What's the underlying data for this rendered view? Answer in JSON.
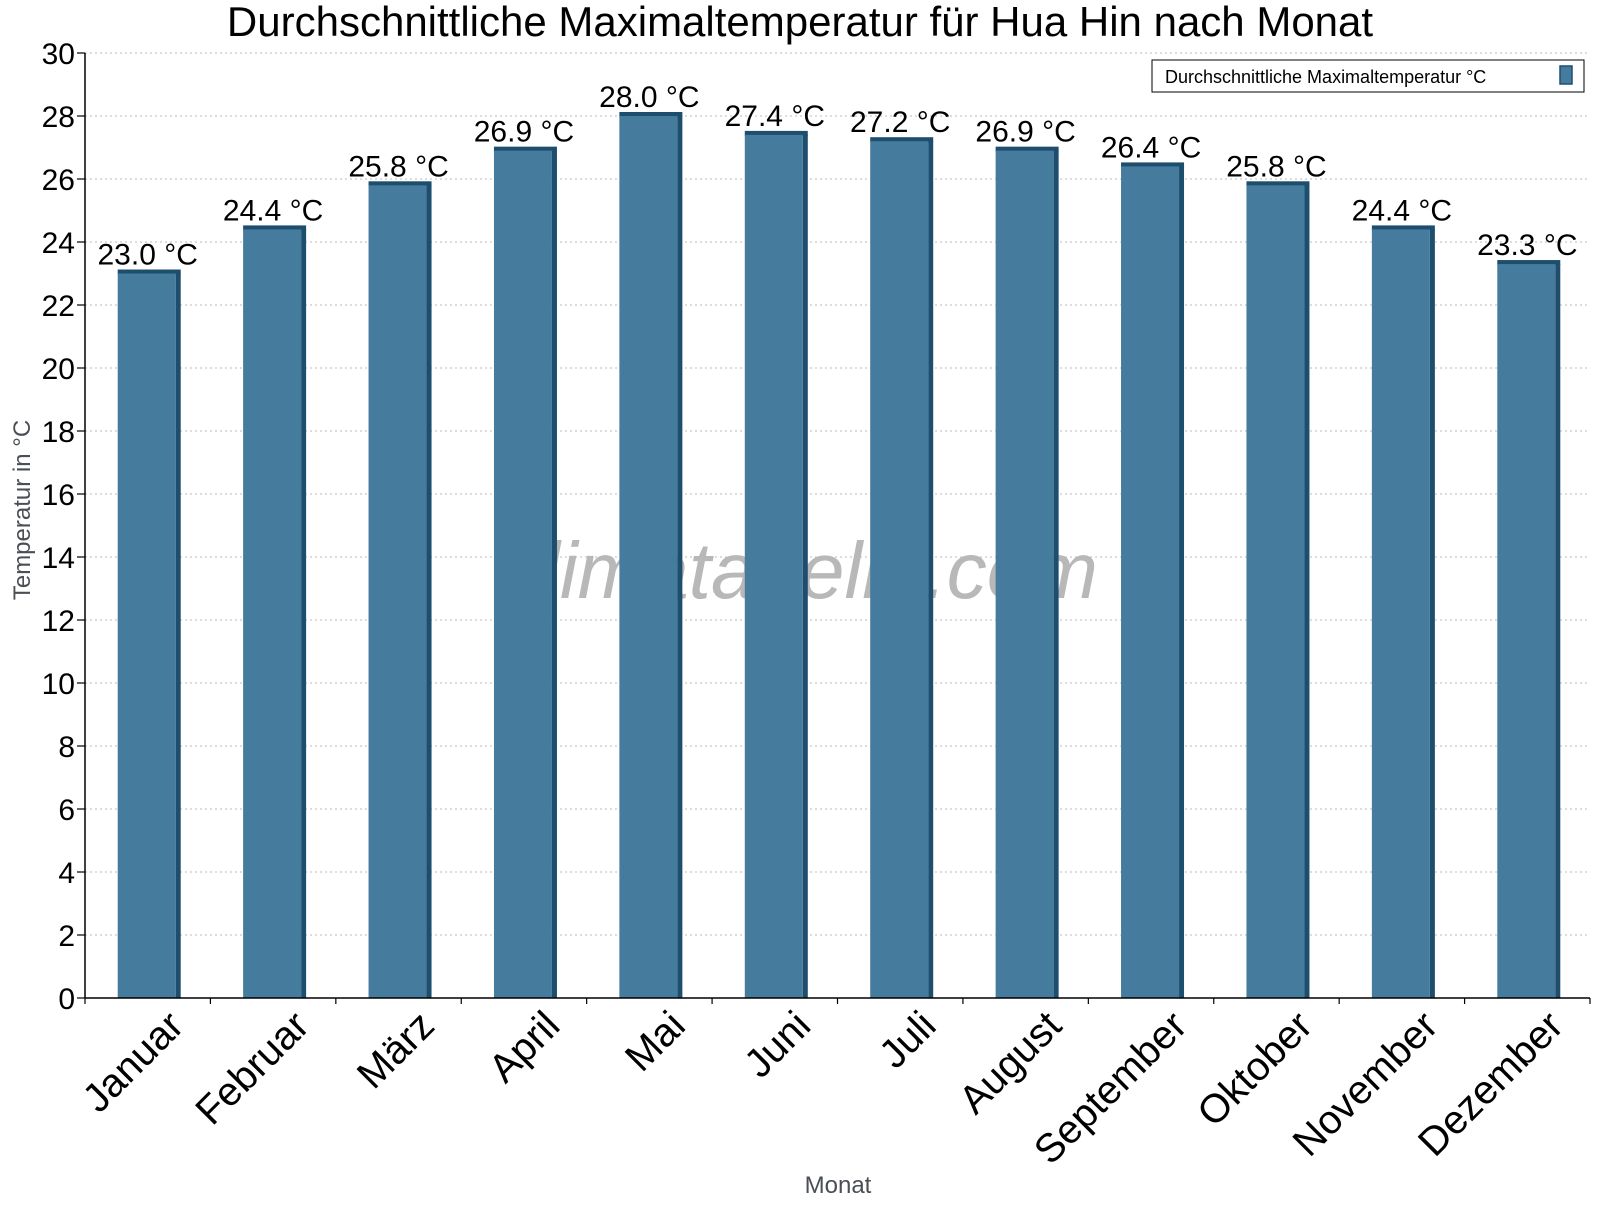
{
  "chart_data": {
    "type": "bar",
    "title": "Durchschnittliche Maximaltemperatur für Hua Hin nach Monat",
    "xlabel": "Monat",
    "ylabel": "Temperatur in °C",
    "categories": [
      "Januar",
      "Februar",
      "März",
      "April",
      "Mai",
      "Juni",
      "Juli",
      "August",
      "September",
      "Oktober",
      "November",
      "Dezember"
    ],
    "series": [
      {
        "name": "Durchschnittliche Maximaltemperatur °C",
        "values": [
          23.0,
          24.4,
          25.8,
          26.9,
          28.0,
          27.4,
          27.2,
          26.9,
          26.4,
          25.8,
          24.4,
          23.3
        ]
      }
    ],
    "data_labels": [
      "23.0 °C",
      "24.4 °C",
      "25.8 °C",
      "26.9 °C",
      "28.0 °C",
      "27.4 °C",
      "27.2 °C",
      "26.9 °C",
      "26.4 °C",
      "25.8 °C",
      "24.4 °C",
      "23.3 °C"
    ],
    "ylim": [
      0,
      30
    ],
    "yticks": [
      0,
      2,
      4,
      6,
      8,
      10,
      12,
      14,
      16,
      18,
      20,
      22,
      24,
      26,
      28,
      30
    ],
    "grid": true,
    "legend_position": "top-right",
    "watermark": "klimatabelle.com",
    "colors": {
      "bar": "#457b9d",
      "bar_dark": "#1d4e6e",
      "grid": "#bbbbbb",
      "axis": "#000000",
      "axis_label": "#4a4f55",
      "watermark": "#b8b8b8"
    }
  }
}
